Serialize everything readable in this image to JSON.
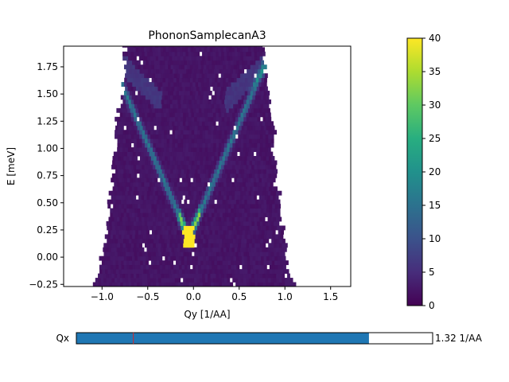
{
  "chart_data": {
    "type": "heatmap",
    "title": "PhononSamplecanA3",
    "xlabel": "Qy [1/AA]",
    "ylabel": "E [meV]",
    "xlim": [
      -1.42,
      1.72
    ],
    "ylim": [
      -0.27,
      1.94
    ],
    "x_ticks": [
      -1.0,
      -0.5,
      0.0,
      0.5,
      1.0,
      1.5
    ],
    "x_tick_labels": [
      "−1.0",
      "−0.5",
      "0.0",
      "0.5",
      "1.0",
      "1.5"
    ],
    "y_ticks": [
      -0.25,
      0.0,
      0.25,
      0.5,
      0.75,
      1.0,
      1.25,
      1.5,
      1.75
    ],
    "y_tick_labels": [
      "−0.25",
      "0.00",
      "0.25",
      "0.50",
      "0.75",
      "1.00",
      "1.25",
      "1.50",
      "1.75"
    ],
    "colormap": "viridis",
    "colorbar": {
      "min": 0,
      "max": 40,
      "ticks": [
        0,
        5,
        10,
        15,
        20,
        25,
        30,
        35,
        40
      ],
      "tick_labels": [
        "0",
        "5",
        "10",
        "15",
        "20",
        "25",
        "30",
        "35",
        "40"
      ]
    },
    "coverage": {
      "note_rows": "E value, Qy left edge, Qy right edge of measured region",
      "rows": [
        [
          -0.25,
          -1.07,
          1.07
        ],
        [
          0.0,
          -1.0,
          1.0
        ],
        [
          0.25,
          -0.96,
          0.96
        ],
        [
          0.5,
          -0.92,
          0.92
        ],
        [
          0.75,
          -0.88,
          0.88
        ],
        [
          1.0,
          -0.86,
          0.86
        ],
        [
          1.25,
          -0.84,
          0.84
        ],
        [
          1.5,
          -0.78,
          0.82
        ],
        [
          1.75,
          -0.75,
          0.75
        ],
        [
          1.94,
          -0.75,
          0.75
        ]
      ]
    },
    "dispersion": {
      "branch_slope_E_per_Qy": 3.2,
      "minimum_Qy": -0.05,
      "minimum_E": 0.18,
      "peak_intensity": 40
    }
  },
  "slider": {
    "label": "Qx",
    "value_text": "1.32 1/AA",
    "fill_fraction": 0.82,
    "marker_fraction": 0.16,
    "fill_color": "#1f77b4",
    "marker_color": "#d62728"
  }
}
